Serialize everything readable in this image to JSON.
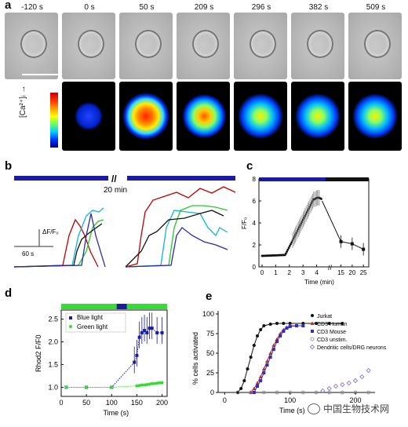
{
  "panel_a": {
    "label": "a",
    "times": [
      "-120 s",
      "0 s",
      "50 s",
      "209 s",
      "296 s",
      "382 s",
      "509 s"
    ],
    "ca_label": "[Ca²⁺]ᵢ"
  },
  "panel_b": {
    "label": "b",
    "gap_label": "20 min",
    "scale_y": "ΔF/F₀",
    "scale_x": "60 s"
  },
  "panel_c": {
    "label": "c",
    "ylabel": "F/F₀",
    "xlabel": "Time (min)",
    "yticks": [
      "0",
      "2",
      "4",
      "6",
      "8"
    ],
    "xticks": [
      "0",
      "1",
      "2",
      "3",
      "4",
      "15",
      "20",
      "25"
    ]
  },
  "panel_d": {
    "label": "d",
    "ylabel": "Rhod2 F/F0",
    "xlabel": "Time (s)",
    "yticks": [
      "1.0",
      "1.5",
      "2.0",
      "2.5"
    ],
    "xticks": [
      "0",
      "50",
      "100",
      "150",
      "200"
    ],
    "legend": [
      "Blue light",
      "Green light"
    ]
  },
  "panel_e": {
    "label": "e",
    "ylabel": "% cells activated",
    "xlabel": "Time (s)",
    "yticks": [
      "0",
      "25",
      "50",
      "75",
      "100"
    ],
    "xticks": [
      "0",
      "100",
      "200"
    ],
    "legend": [
      "Jurkat",
      "CD3 Human",
      "CD3 Mouse",
      "CD3 unstim.",
      "Dendritic cells/DRG neurons"
    ]
  },
  "watermark": "中国生物技术网",
  "colors": {
    "blue_bar": "#1c1ca0",
    "green_bar": "#33dd33",
    "black": "#111111"
  },
  "chart_data": [
    {
      "type": "line",
      "panel": "c",
      "xlabel": "Time (min)",
      "ylabel": "F/F₀",
      "ylim": [
        0,
        8
      ],
      "series": [
        {
          "x": [
            0,
            0.5,
            1,
            1.5,
            2,
            2.3,
            2.6,
            3,
            3.3,
            3.6,
            4,
            4.3
          ],
          "values": [
            1.0,
            1.0,
            1.05,
            1.1,
            1.5,
            3.0,
            4.0,
            5.0,
            5.6,
            6.0,
            6.3,
            6.1
          ]
        },
        {
          "x": [
            15,
            20,
            25
          ],
          "values": [
            2.3,
            2.1,
            1.6
          ]
        }
      ]
    },
    {
      "type": "scatter",
      "panel": "d",
      "xlabel": "Time (s)",
      "ylabel": "Rhod2 F/F0",
      "ylim": [
        0.8,
        2.7
      ],
      "xlim": [
        0,
        210
      ],
      "series": [
        {
          "name": "Blue light",
          "x": [
            10,
            50,
            100,
            145,
            150,
            155,
            160,
            165,
            170,
            175,
            180,
            190,
            200
          ],
          "values": [
            1.0,
            1.0,
            1.0,
            1.55,
            1.7,
            2.1,
            2.2,
            2.25,
            2.2,
            2.3,
            2.3,
            2.2,
            2.2
          ]
        },
        {
          "name": "Green light",
          "x": [
            10,
            50,
            100,
            150,
            155,
            160,
            165,
            170,
            175,
            180,
            185,
            190,
            195,
            200
          ],
          "values": [
            1.0,
            1.0,
            1.0,
            1.03,
            1.04,
            1.05,
            1.05,
            1.06,
            1.07,
            1.08,
            1.08,
            1.09,
            1.1,
            1.1
          ]
        }
      ]
    },
    {
      "type": "scatter",
      "panel": "e",
      "xlabel": "Time (s)",
      "ylabel": "% cells activated",
      "ylim": [
        0,
        100
      ],
      "series": [
        {
          "name": "Jurkat",
          "x": [
            20,
            25,
            30,
            35,
            40,
            45,
            50,
            55,
            60,
            70,
            80,
            90,
            100,
            120,
            140,
            160,
            180
          ],
          "values": [
            0,
            5,
            15,
            30,
            45,
            60,
            72,
            80,
            85,
            87,
            88,
            88,
            88,
            88,
            88,
            88,
            88
          ]
        },
        {
          "name": "CD3 Human",
          "x": [
            40,
            45,
            50,
            55,
            60,
            65,
            70,
            75,
            80,
            85,
            90,
            95,
            100,
            110,
            120
          ],
          "values": [
            0,
            5,
            12,
            20,
            30,
            40,
            50,
            60,
            68,
            75,
            80,
            83,
            85,
            85,
            85
          ]
        },
        {
          "name": "CD3 Mouse",
          "x": [
            45,
            50,
            55,
            60,
            65,
            70,
            75,
            80,
            85,
            90,
            95,
            100,
            110,
            120
          ],
          "values": [
            0,
            8,
            15,
            25,
            35,
            45,
            55,
            65,
            72,
            78,
            82,
            84,
            85,
            85
          ]
        },
        {
          "name": "CD3 unstim.",
          "x": [
            20,
            40,
            60,
            80,
            100,
            120,
            140,
            160,
            180,
            200,
            220
          ],
          "values": [
            0,
            0,
            0,
            0,
            0,
            0,
            0,
            0,
            0,
            0,
            0
          ]
        },
        {
          "name": "Dendritic cells/DRG neurons",
          "x": [
            150,
            160,
            170,
            180,
            190,
            200,
            210,
            220
          ],
          "values": [
            2,
            5,
            8,
            10,
            12,
            15,
            20,
            28
          ]
        }
      ]
    }
  ]
}
